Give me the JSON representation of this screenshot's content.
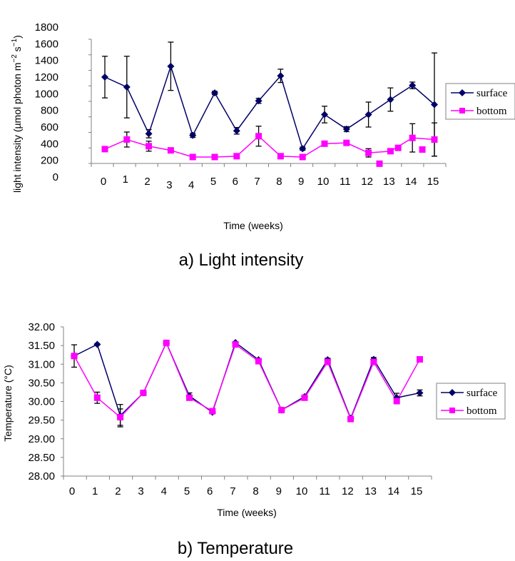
{
  "chart_data": [
    {
      "type": "line",
      "caption": "a) Light intensity",
      "title": "",
      "xlabel": "Time (weeks)",
      "ylabel": "light intensity (µmol photon m⁻² s⁻¹)",
      "ylabel_main": "light intensity (µmol photon m",
      "ylabel_sup1": "−2",
      "ylabel_mid": " s",
      "ylabel_sup2": "−1",
      "ylabel_end": ")",
      "x": [
        0,
        1,
        2,
        3,
        4,
        5,
        6,
        7,
        8,
        9,
        10,
        11,
        12,
        13,
        14,
        15
      ],
      "x_tick_labels": [
        "0",
        "1",
        "2",
        "3",
        "4",
        "5",
        "6",
        "7",
        "8",
        "9",
        "10",
        "11",
        "12",
        "13",
        "14",
        "15"
      ],
      "y_tick_labels": [
        "0",
        "200",
        "400",
        "600",
        "800",
        "1000",
        "1200",
        "1400",
        "1600",
        "1800"
      ],
      "ylim": [
        0,
        1800
      ],
      "grid": false,
      "legend_position": "right",
      "series": [
        {
          "name": "surface",
          "color": "#000066",
          "marker": "diamond",
          "values": [
            1200,
            1080,
            520,
            1330,
            500,
            1010,
            555,
            915,
            1215,
            340,
            750,
            575,
            750,
            930,
            1100,
            870
          ],
          "error": [
            250,
            370,
            50,
            290,
            25,
            20,
            40,
            30,
            80,
            20,
            100,
            30,
            150,
            140,
            40,
            620
          ]
        },
        {
          "name": "bottom",
          "color": "#ff00ff",
          "marker": "square",
          "values": [
            335,
            450,
            370,
            320,
            240,
            240,
            250,
            490,
            250,
            240,
            400,
            410,
            290,
            310,
            470,
            450
          ],
          "error": [
            10,
            90,
            60,
            10,
            10,
            10,
            15,
            120,
            15,
            15,
            25,
            20,
            50,
            20,
            170,
            200
          ],
          "stray_markers": [
            {
              "x": 12.5,
              "y": 160
            },
            {
              "x": 13.35,
              "y": 350
            },
            {
              "x": 14.45,
              "y": 330
            }
          ]
        }
      ]
    },
    {
      "type": "line",
      "caption": "b) Temperature",
      "title": "",
      "xlabel": "Time (weeks)",
      "ylabel": "Temperature (°C)",
      "x": [
        0,
        1,
        2,
        3,
        4,
        5,
        6,
        7,
        8,
        9,
        10,
        11,
        12,
        13,
        14,
        15
      ],
      "x_tick_labels": [
        "0",
        "1",
        "2",
        "3",
        "4",
        "5",
        "6",
        "7",
        "8",
        "9",
        "10",
        "11",
        "12",
        "13",
        "14",
        "15"
      ],
      "y_tick_labels": [
        "28.00",
        "28.50",
        "29.00",
        "29.50",
        "30.00",
        "30.50",
        "31.00",
        "31.50",
        "32.00"
      ],
      "ylim": [
        28.0,
        32.0
      ],
      "grid": false,
      "legend_position": "right",
      "series": [
        {
          "name": "surface",
          "color": "#000066",
          "marker": "diamond",
          "values": [
            31.22,
            31.53,
            29.62,
            30.23,
            31.57,
            30.15,
            29.71,
            31.58,
            31.12,
            29.77,
            30.13,
            31.12,
            29.55,
            31.13,
            30.1,
            30.23
          ],
          "error": [
            0.3,
            0.02,
            0.3,
            0.03,
            0.02,
            0.08,
            0.02,
            0.02,
            0.03,
            0.02,
            0.04,
            0.04,
            0.02,
            0.05,
            0.12,
            0.08
          ]
        },
        {
          "name": "bottom",
          "color": "#ff00ff",
          "marker": "square",
          "values": [
            31.22,
            30.1,
            29.58,
            30.23,
            31.57,
            30.1,
            29.74,
            31.53,
            31.08,
            29.77,
            30.1,
            31.06,
            29.53,
            31.06,
            30.01,
            31.13
          ],
          "error": [
            0.02,
            0.15,
            0.22,
            0.02,
            0.02,
            0.05,
            0.02,
            0.02,
            0.04,
            0.02,
            0.04,
            0.04,
            0.03,
            0.03,
            0.05,
            0.01
          ]
        }
      ]
    }
  ]
}
